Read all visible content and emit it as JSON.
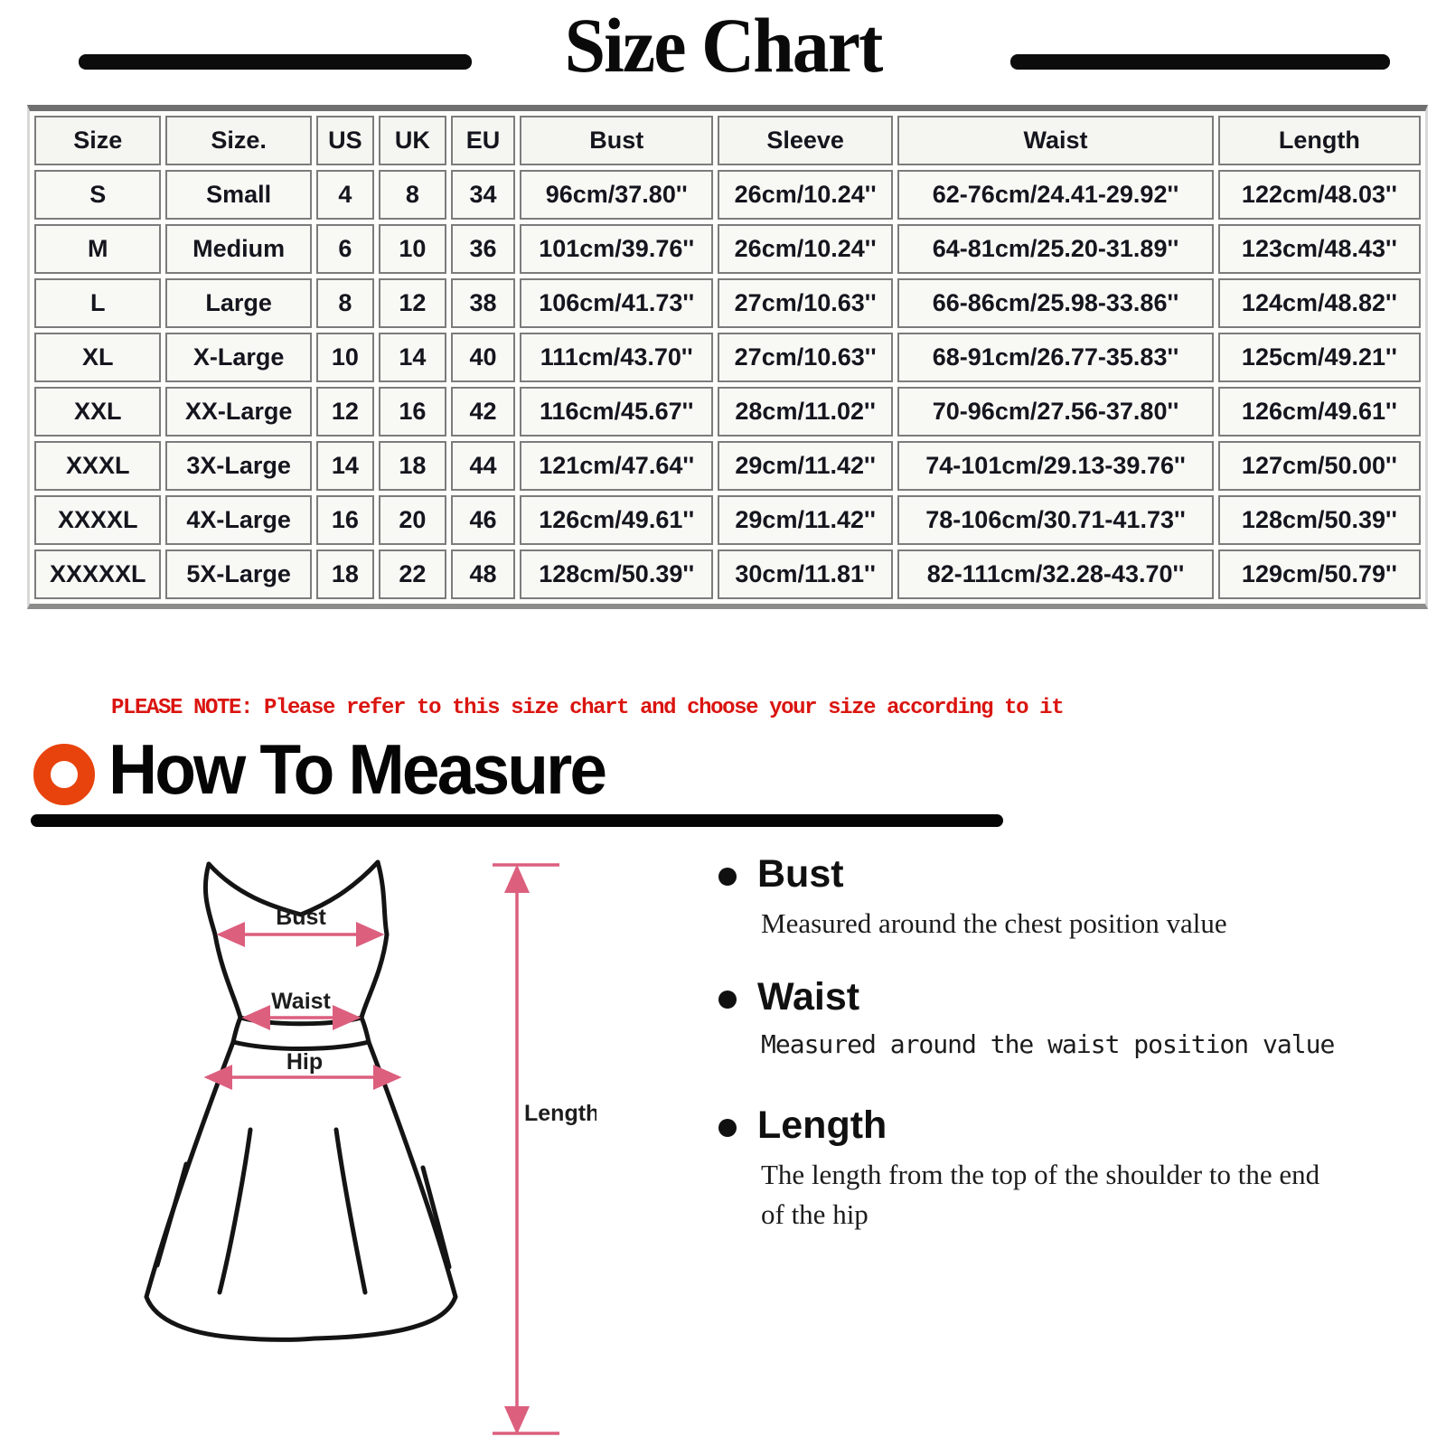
{
  "title": "Size Chart",
  "size_table": {
    "headers": [
      "Size",
      "Size.",
      "US",
      "UK",
      "EU",
      "Bust",
      "Sleeve",
      "Waist",
      "Length"
    ],
    "rows": [
      [
        "S",
        "Small",
        "4",
        "8",
        "34",
        "96cm/37.80''",
        "26cm/10.24''",
        "62-76cm/24.41-29.92''",
        "122cm/48.03''"
      ],
      [
        "M",
        "Medium",
        "6",
        "10",
        "36",
        "101cm/39.76''",
        "26cm/10.24''",
        "64-81cm/25.20-31.89''",
        "123cm/48.43''"
      ],
      [
        "L",
        "Large",
        "8",
        "12",
        "38",
        "106cm/41.73''",
        "27cm/10.63''",
        "66-86cm/25.98-33.86''",
        "124cm/48.82''"
      ],
      [
        "XL",
        "X-Large",
        "10",
        "14",
        "40",
        "111cm/43.70''",
        "27cm/10.63''",
        "68-91cm/26.77-35.83''",
        "125cm/49.21''"
      ],
      [
        "XXL",
        "XX-Large",
        "12",
        "16",
        "42",
        "116cm/45.67''",
        "28cm/11.02''",
        "70-96cm/27.56-37.80''",
        "126cm/49.61''"
      ],
      [
        "XXXL",
        "3X-Large",
        "14",
        "18",
        "44",
        "121cm/47.64''",
        "29cm/11.42''",
        "74-101cm/29.13-39.76''",
        "127cm/50.00''"
      ],
      [
        "XXXXL",
        "4X-Large",
        "16",
        "20",
        "46",
        "126cm/49.61''",
        "29cm/11.42''",
        "78-106cm/30.71-41.73''",
        "128cm/50.39''"
      ],
      [
        "XXXXXL",
        "5X-Large",
        "18",
        "22",
        "48",
        "128cm/50.39''",
        "30cm/11.81''",
        "82-111cm/32.28-43.70''",
        "129cm/50.79''"
      ]
    ]
  },
  "note": "PLEASE NOTE: Please refer to this size chart and choose your size according to it",
  "how_to_measure": {
    "title": "How To Measure",
    "items": [
      {
        "label": "Bust",
        "desc": "Measured around the chest position value"
      },
      {
        "label": "Waist",
        "desc": "Measured around the waist position value"
      },
      {
        "label": "Length",
        "desc": "The length from the top of the shoulder to the end of the hip"
      }
    ]
  },
  "diagram": {
    "labels": {
      "bust": "Bust",
      "waist": "Waist",
      "hip": "Hip",
      "length": "Length"
    }
  },
  "colors": {
    "accent_orange": "#e8430d",
    "note_red": "#da1510",
    "measure_pink": "#dc5f7e",
    "table_border_gray": "#7c7c7c",
    "ink_black": "#0c0c0c"
  }
}
